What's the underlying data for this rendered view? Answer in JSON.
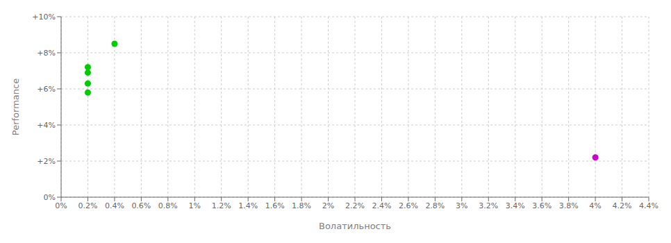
{
  "chart_data": {
    "type": "scatter",
    "xlabel": "Волатильность",
    "ylabel": "Performance",
    "series": [
      {
        "color": "#00cc00",
        "x": [
          0.004,
          0.002,
          0.002,
          0.002,
          0.002
        ],
        "values": [
          0.085,
          0.072,
          0.069,
          0.063,
          0.058
        ]
      },
      {
        "color": "#cc00cc",
        "x": [
          0.04
        ],
        "values": [
          0.022
        ]
      }
    ],
    "xlim": [
      0.0,
      0.044
    ],
    "ylim": [
      0.0,
      0.1
    ],
    "xticks": [
      {
        "value": 0.0,
        "label": "0%"
      },
      {
        "value": 0.002,
        "label": "0.2%"
      },
      {
        "value": 0.004,
        "label": "0.4%"
      },
      {
        "value": 0.006,
        "label": "0.6%"
      },
      {
        "value": 0.008,
        "label": "0.8%"
      },
      {
        "value": 0.01,
        "label": "1%"
      },
      {
        "value": 0.012,
        "label": "1.2%"
      },
      {
        "value": 0.014,
        "label": "1.4%"
      },
      {
        "value": 0.016,
        "label": "1.6%"
      },
      {
        "value": 0.018,
        "label": "1.8%"
      },
      {
        "value": 0.02,
        "label": "2%"
      },
      {
        "value": 0.022,
        "label": "2.2%"
      },
      {
        "value": 0.024,
        "label": "2.4%"
      },
      {
        "value": 0.026,
        "label": "2.6%"
      },
      {
        "value": 0.028,
        "label": "2.8%"
      },
      {
        "value": 0.03,
        "label": "3%"
      },
      {
        "value": 0.032,
        "label": "3.2%"
      },
      {
        "value": 0.034,
        "label": "3.4%"
      },
      {
        "value": 0.036,
        "label": "3.6%"
      },
      {
        "value": 0.038,
        "label": "3.8%"
      },
      {
        "value": 0.04,
        "label": "4%"
      },
      {
        "value": 0.042,
        "label": "4.2%"
      },
      {
        "value": 0.044,
        "label": "4.4%"
      }
    ],
    "yticks": [
      {
        "value": 0.0,
        "label": "0%"
      },
      {
        "value": 0.02,
        "label": "+2%"
      },
      {
        "value": 0.04,
        "label": "+4%"
      },
      {
        "value": 0.06,
        "label": "+6%"
      },
      {
        "value": 0.08,
        "label": "+8%"
      },
      {
        "value": 0.1,
        "label": "+10%"
      }
    ],
    "grid": true
  }
}
